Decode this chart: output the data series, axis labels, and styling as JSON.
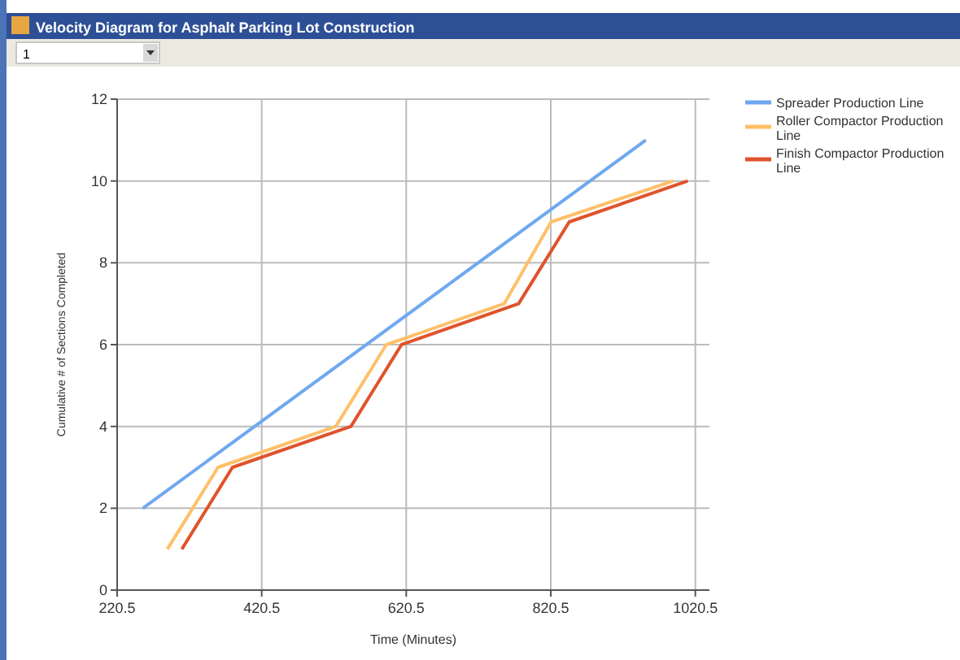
{
  "chart_data": {
    "type": "line",
    "title": "Velocity Diagram for Asphalt Parking Lot Construction",
    "annotations": [
      "1"
    ],
    "xlabel": "Time (Minutes)",
    "ylabel": "Cumulative # of Sections Completed",
    "xlim": [
      220.5,
      1040
    ],
    "xticks": [
      220.5,
      420.5,
      620.5,
      820.5,
      1020.5
    ],
    "ylim": [
      0,
      12
    ],
    "yticks": [
      0,
      2,
      4,
      6,
      8,
      10,
      12
    ],
    "grid": true,
    "legend": "top right",
    "marker": "none",
    "line_style": "solid",
    "series": [
      {
        "name": "Spreader Production Line",
        "color": "#6fa8f0",
        "x": [
          256,
          952
        ],
        "values": [
          2,
          11
        ]
      },
      {
        "name": "Roller Compactor Production Line",
        "color": "#ffc068",
        "x": [
          290,
          360,
          523,
          593,
          756,
          821,
          990
        ],
        "values": [
          1,
          3,
          4,
          6,
          7,
          9,
          10
        ]
      },
      {
        "name": "Finish Compactor Production Line",
        "color": "#e0532c",
        "x": [
          310,
          380,
          544,
          614,
          776,
          846,
          1010
        ],
        "values": [
          1,
          3,
          4,
          6,
          7,
          9,
          10
        ]
      }
    ]
  }
}
